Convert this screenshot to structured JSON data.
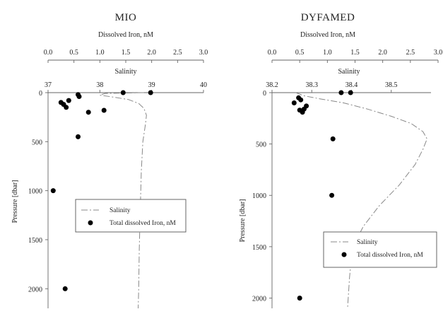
{
  "chart_data": [
    {
      "type": "scatter",
      "title": "MIO",
      "xlabel_top": "Dissolved Iron, nM",
      "xlabel_second": "Salinity",
      "ylabel": "Pressure [dbar]",
      "iron_ticks": [
        "0.0",
        "0.5",
        "1.0",
        "1.5",
        "2.0",
        "2.5",
        "3.0"
      ],
      "salinity_ticks": [
        "37",
        "38",
        "39",
        "40"
      ],
      "pressure_ticks": [
        "0",
        "500",
        "1000",
        "1500",
        "2000"
      ],
      "iron_xlim": [
        0,
        3
      ],
      "salinity_xlim": [
        37,
        40
      ],
      "ylim": [
        0,
        2200
      ],
      "legend": {
        "placement": "center",
        "salinity": "Salinity",
        "iron": "Total dissolved Iron, nM"
      },
      "series": [
        {
          "name": "Salinity",
          "style": "dashed-line",
          "x_axis": "salinity",
          "points": [
            [
              38.85,
              0
            ],
            [
              38.1,
              8
            ],
            [
              38.0,
              25
            ],
            [
              38.25,
              45
            ],
            [
              38.55,
              70
            ],
            [
              38.75,
              110
            ],
            [
              38.85,
              160
            ],
            [
              38.9,
              230
            ],
            [
              38.88,
              320
            ],
            [
              38.83,
              500
            ],
            [
              38.8,
              800
            ],
            [
              38.78,
              1200
            ],
            [
              38.76,
              1600
            ],
            [
              38.75,
              2000
            ],
            [
              38.74,
              2200
            ]
          ]
        },
        {
          "name": "Total dissolved Iron, nM",
          "style": "points",
          "x_axis": "iron",
          "points": [
            [
              1.45,
              0
            ],
            [
              1.98,
              0
            ],
            [
              0.58,
              20
            ],
            [
              0.6,
              40
            ],
            [
              0.4,
              80
            ],
            [
              0.25,
              100
            ],
            [
              0.3,
              120
            ],
            [
              0.35,
              150
            ],
            [
              0.78,
              200
            ],
            [
              1.08,
              180
            ],
            [
              0.58,
              450
            ],
            [
              0.1,
              1000
            ],
            [
              0.33,
              2000
            ]
          ]
        }
      ]
    },
    {
      "type": "scatter",
      "title": "DYFAMED",
      "xlabel_top": "Dissolved Iron, nM",
      "xlabel_second": "Salinity",
      "ylabel": "Pressure [dbar]",
      "iron_ticks": [
        "0.0",
        "0.5",
        "1.0",
        "1.5",
        "2.0",
        "2.5",
        "3.0"
      ],
      "salinity_ticks": [
        "38.2",
        "38.3",
        "38.4",
        "38.5"
      ],
      "salinity_xlim": [
        38.2,
        38.6
      ],
      "iron_xlim": [
        0,
        3
      ],
      "pressure_ticks": [
        "0",
        "500",
        "1000",
        "1500",
        "2000"
      ],
      "ylim": [
        0,
        2100
      ],
      "legend": {
        "placement": "bottom-right",
        "salinity": "Salinity",
        "iron": "Total dissolved Iron, nM"
      },
      "series": [
        {
          "name": "Salinity",
          "style": "dashed-line",
          "x_axis": "salinity",
          "points": [
            [
              38.26,
              0
            ],
            [
              38.28,
              30
            ],
            [
              38.32,
              60
            ],
            [
              38.38,
              100
            ],
            [
              38.44,
              160
            ],
            [
              38.5,
              230
            ],
            [
              38.55,
              300
            ],
            [
              38.58,
              380
            ],
            [
              38.59,
              450
            ],
            [
              38.58,
              550
            ],
            [
              38.56,
              700
            ],
            [
              38.52,
              900
            ],
            [
              38.47,
              1100
            ],
            [
              38.43,
              1300
            ],
            [
              38.41,
              1450
            ],
            [
              38.4,
              1600
            ],
            [
              38.395,
              1800
            ],
            [
              38.39,
              2100
            ]
          ]
        },
        {
          "name": "Total dissolved Iron, nM",
          "style": "points",
          "x_axis": "iron",
          "points": [
            [
              1.25,
              0
            ],
            [
              1.42,
              0
            ],
            [
              0.48,
              50
            ],
            [
              0.52,
              70
            ],
            [
              0.4,
              100
            ],
            [
              0.62,
              130
            ],
            [
              0.58,
              160
            ],
            [
              0.5,
              170
            ],
            [
              0.55,
              190
            ],
            [
              1.1,
              450
            ],
            [
              1.08,
              1000
            ],
            [
              0.5,
              2000
            ]
          ]
        }
      ]
    }
  ]
}
